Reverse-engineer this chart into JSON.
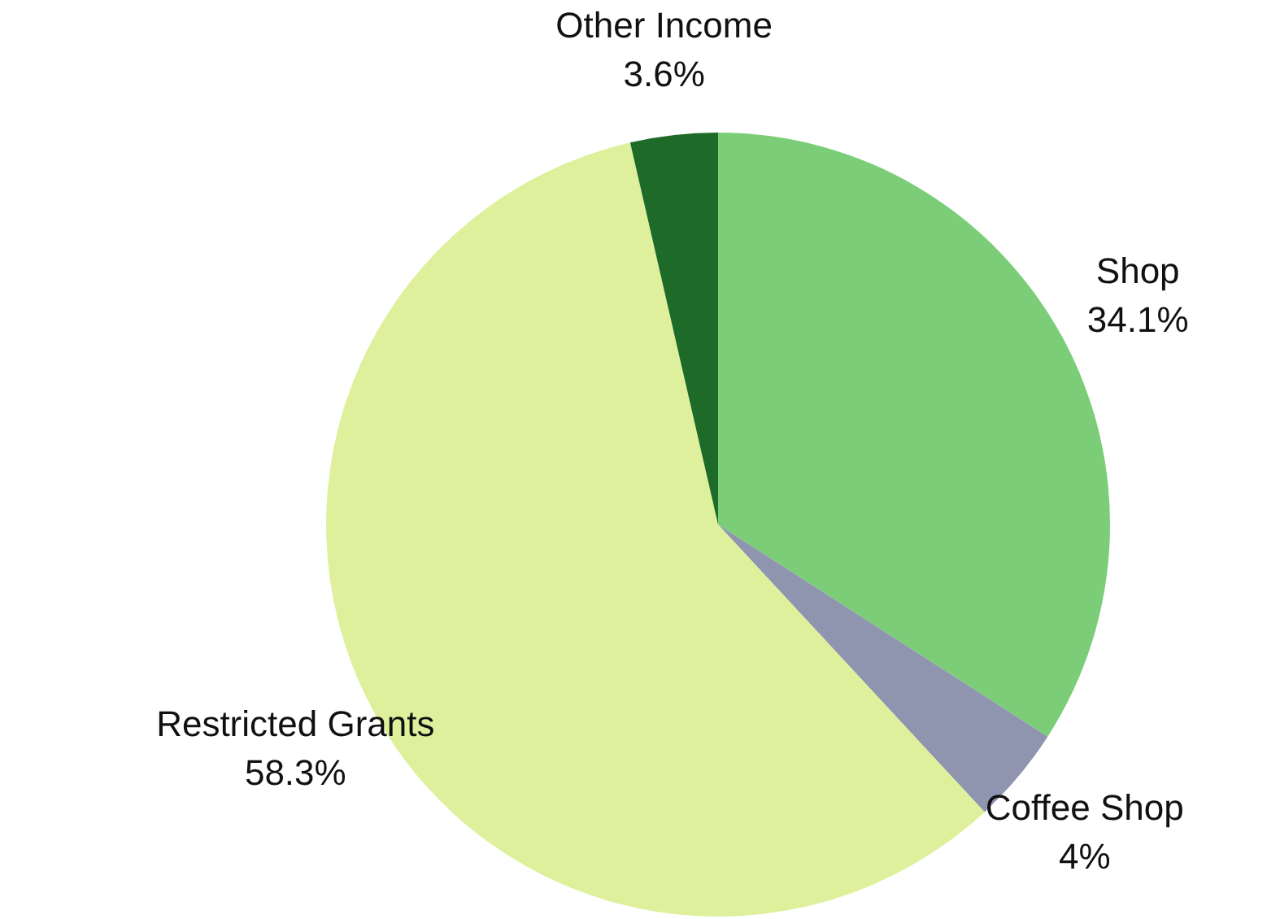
{
  "chart_data": {
    "type": "pie",
    "categories": [
      "Shop",
      "Coffee Shop",
      "Restricted Grants",
      "Other Income"
    ],
    "values": [
      34.1,
      4,
      58.3,
      3.6
    ],
    "colors": [
      "#7bcd77",
      "#8f95ae",
      "#dff09c",
      "#1e6b29"
    ],
    "value_labels": [
      "34.1%",
      "4%",
      "58.3%",
      "3.6%"
    ]
  }
}
